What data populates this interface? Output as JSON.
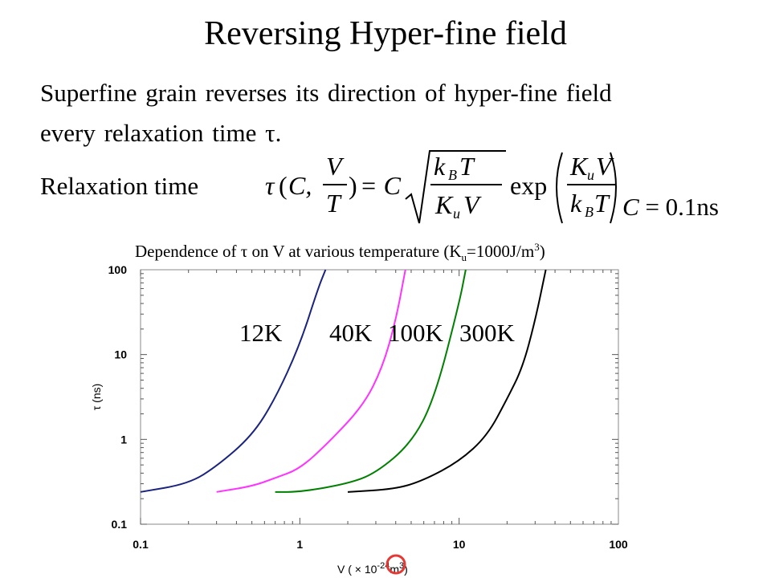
{
  "slide": {
    "title": "Reversing Hyper-fine field",
    "body_line1": "Superfine grain reverses its direction of hyper-fine field",
    "body_line2": "every relaxation time τ.",
    "relaxation_label": "Relaxation time",
    "constant_name": "C",
    "constant_value": " = 0.1ns"
  },
  "formula": {
    "lhs_tau": "τ",
    "lhs_C": "C,",
    "V": "V",
    "T": "T",
    "eq_C": "= C",
    "kBT": "k",
    "kB_sub": "B",
    "T2": "T",
    "KuV_K": "K",
    "Ku_sub": "u",
    "V2": "V",
    "exp": "exp"
  },
  "chart_title": {
    "prefix": "Dependence of τ on V at various temperature (K",
    "sub": "u",
    "mid": "=1000J/m",
    "sup": "3",
    "suffix": ")"
  },
  "chart_data": {
    "type": "line",
    "x_scale": "log",
    "y_scale": "log",
    "xlim": [
      0.1,
      100
    ],
    "ylim": [
      0.1,
      100
    ],
    "x_ticks": [
      "0.1",
      "1",
      "10",
      "100"
    ],
    "y_ticks": [
      "100",
      "10",
      "1",
      "0.1"
    ],
    "xlabel": {
      "text": "V ( × 10",
      "exp": "-24",
      "unit": "m",
      "unit_exp": "3",
      "close": ")"
    },
    "ylabel": "τ (ns)",
    "series": [
      {
        "name": "12K",
        "color": "#1a237e",
        "points": [
          [
            0.1,
            0.24
          ],
          [
            0.2,
            0.3
          ],
          [
            0.3,
            0.48
          ],
          [
            0.5,
            1.1
          ],
          [
            0.7,
            3.0
          ],
          [
            1.0,
            13
          ],
          [
            1.3,
            60
          ],
          [
            1.45,
            100
          ]
        ]
      },
      {
        "name": "40K",
        "color": "#ff33ff",
        "points": [
          [
            0.3,
            0.24
          ],
          [
            0.5,
            0.28
          ],
          [
            0.7,
            0.35
          ],
          [
            1.0,
            0.45
          ],
          [
            1.5,
            0.9
          ],
          [
            2.5,
            2.5
          ],
          [
            3.3,
            7
          ],
          [
            4.0,
            25
          ],
          [
            4.6,
            100
          ]
        ]
      },
      {
        "name": "100K",
        "color": "#008000",
        "points": [
          [
            0.7,
            0.24
          ],
          [
            1.0,
            0.24
          ],
          [
            2.0,
            0.3
          ],
          [
            3.0,
            0.4
          ],
          [
            5.0,
            0.9
          ],
          [
            7.0,
            3
          ],
          [
            10.0,
            40
          ],
          [
            11.0,
            100
          ]
        ]
      },
      {
        "name": "300K",
        "color": "#000000",
        "points": [
          [
            2.0,
            0.24
          ],
          [
            4.0,
            0.26
          ],
          [
            6.0,
            0.33
          ],
          [
            10.0,
            0.55
          ],
          [
            15.0,
            1.1
          ],
          [
            20.0,
            3
          ],
          [
            25.0,
            7
          ],
          [
            30.0,
            25
          ],
          [
            35.0,
            100
          ]
        ]
      }
    ],
    "annotation_color": "#e53935"
  }
}
